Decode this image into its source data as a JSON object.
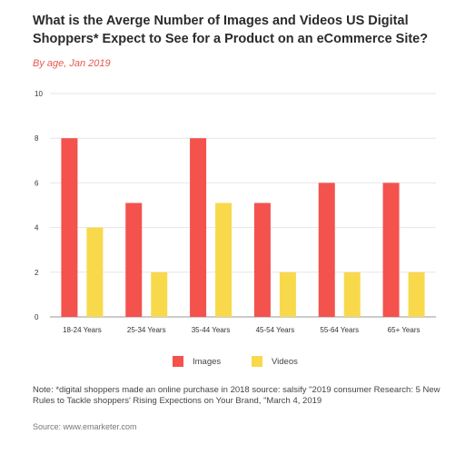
{
  "title": "What is the Averge Number of Images and Videos US Digital Shoppers* Expect to See for a Product on an eCommerce Site?",
  "subtitle": "By age, Jan 2019",
  "note": "Note: *digital shoppers made an online purchase in 2018 source: salsify \"2019 consumer Research: 5 New Rules to Tackle shoppers' Rising Expections on Your Brand, \"March 4, 2019",
  "source": "Source: www.emarketer.com",
  "colors": {
    "images": "#f4524d",
    "videos": "#f8d94c",
    "grid": "#e6e6e6"
  },
  "chart_data": {
    "type": "bar",
    "title": "What is the Averge Number of Images and Videos US Digital Shoppers* Expect to See for a Product on an eCommerce Site?",
    "subtitle": "By age, Jan 2019",
    "categories": [
      "18-24 Years",
      "25-34 Years",
      "35-44 Years",
      "45-54 Years",
      "55-64 Years",
      "65+ Years"
    ],
    "series": [
      {
        "name": "Images",
        "values": [
          8,
          5.1,
          8,
          5.1,
          6,
          6
        ]
      },
      {
        "name": "Videos",
        "values": [
          4,
          2,
          5.1,
          2,
          2,
          2
        ]
      }
    ],
    "yticks": [
      "0",
      "2",
      "4",
      "6",
      "8",
      "10"
    ],
    "ylim": [
      0,
      10
    ],
    "xlabel": "",
    "ylabel": "",
    "grid": true,
    "legend": "bottom"
  }
}
